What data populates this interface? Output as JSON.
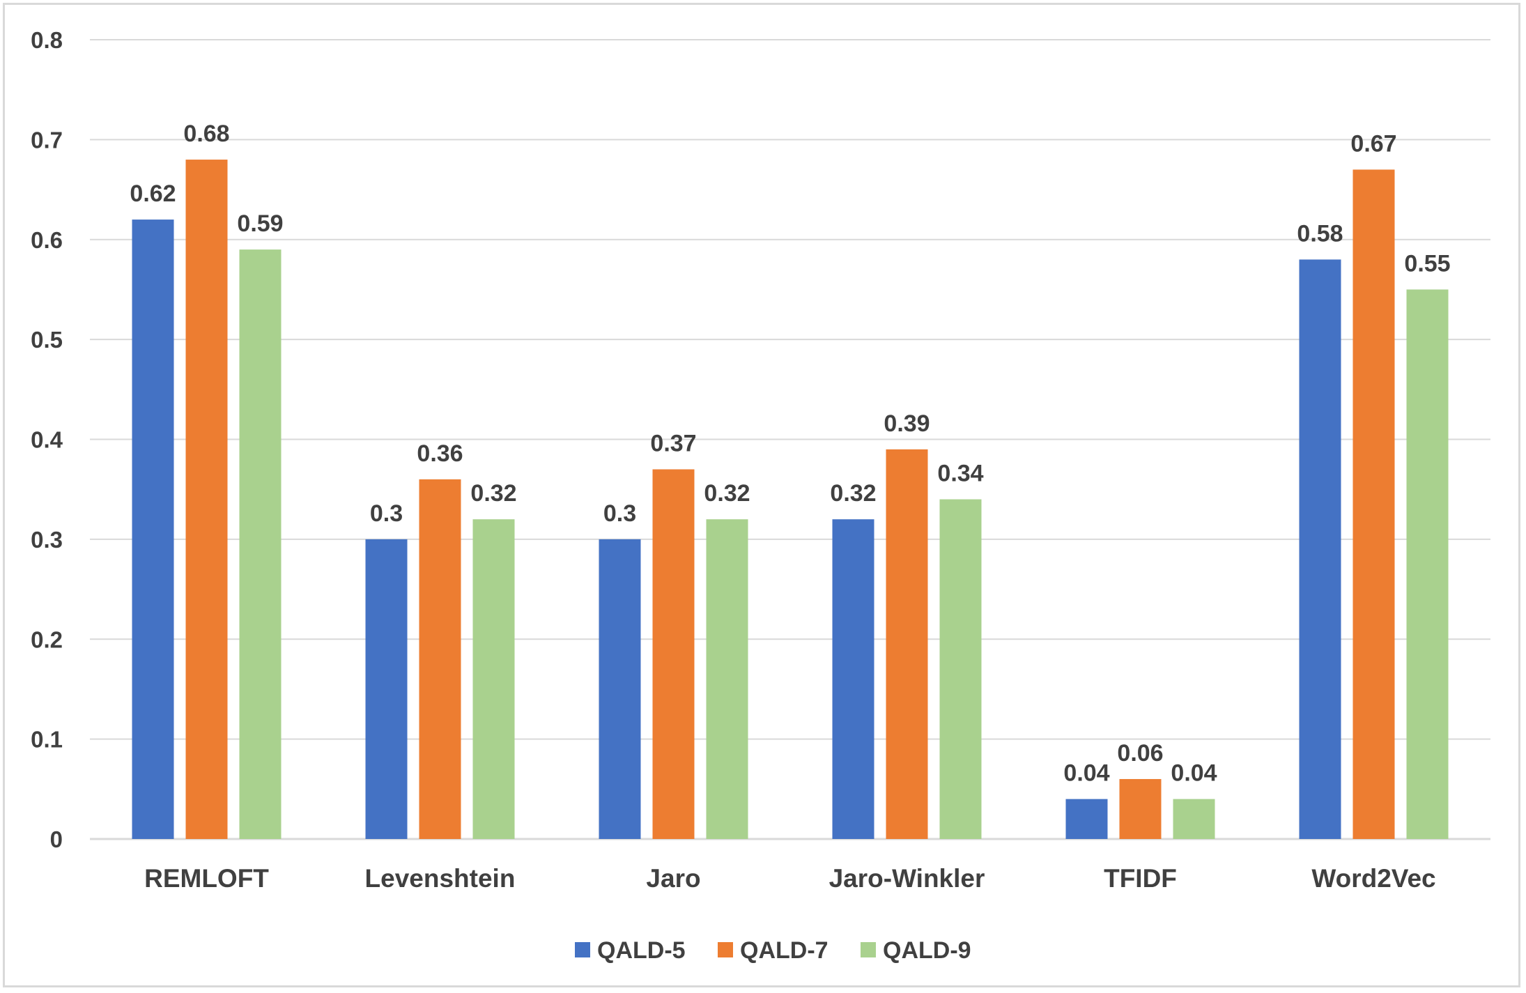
{
  "chart_data": {
    "type": "bar",
    "title": "",
    "xlabel": "",
    "ylabel": "",
    "categories": [
      "REMLOFT",
      "Levenshtein",
      "Jaro",
      "Jaro-Winkler",
      "TFIDF",
      "Word2Vec"
    ],
    "series": [
      {
        "name": "QALD-5",
        "color": "#4472c4",
        "values": [
          0.62,
          0.3,
          0.3,
          0.32,
          0.04,
          0.58
        ],
        "labels": [
          "0.62",
          "0.3",
          "0.3",
          "0.32",
          "0.04",
          "0.58"
        ]
      },
      {
        "name": "QALD-7",
        "color": "#ed7d31",
        "values": [
          0.68,
          0.36,
          0.37,
          0.39,
          0.06,
          0.67
        ],
        "labels": [
          "0.68",
          "0.36",
          "0.37",
          "0.39",
          "0.06",
          "0.67"
        ]
      },
      {
        "name": "QALD-9",
        "color": "#a9d18e",
        "values": [
          0.59,
          0.32,
          0.32,
          0.34,
          0.04,
          0.55
        ],
        "labels": [
          "0.59",
          "0.32",
          "0.32",
          "0.34",
          "0.04",
          "0.55"
        ]
      }
    ],
    "ylim": [
      0,
      0.8
    ],
    "yticks": [
      "0",
      "0.1",
      "0.2",
      "0.3",
      "0.4",
      "0.5",
      "0.6",
      "0.7",
      "0.8"
    ],
    "grid": true,
    "legend_position": "bottom"
  }
}
